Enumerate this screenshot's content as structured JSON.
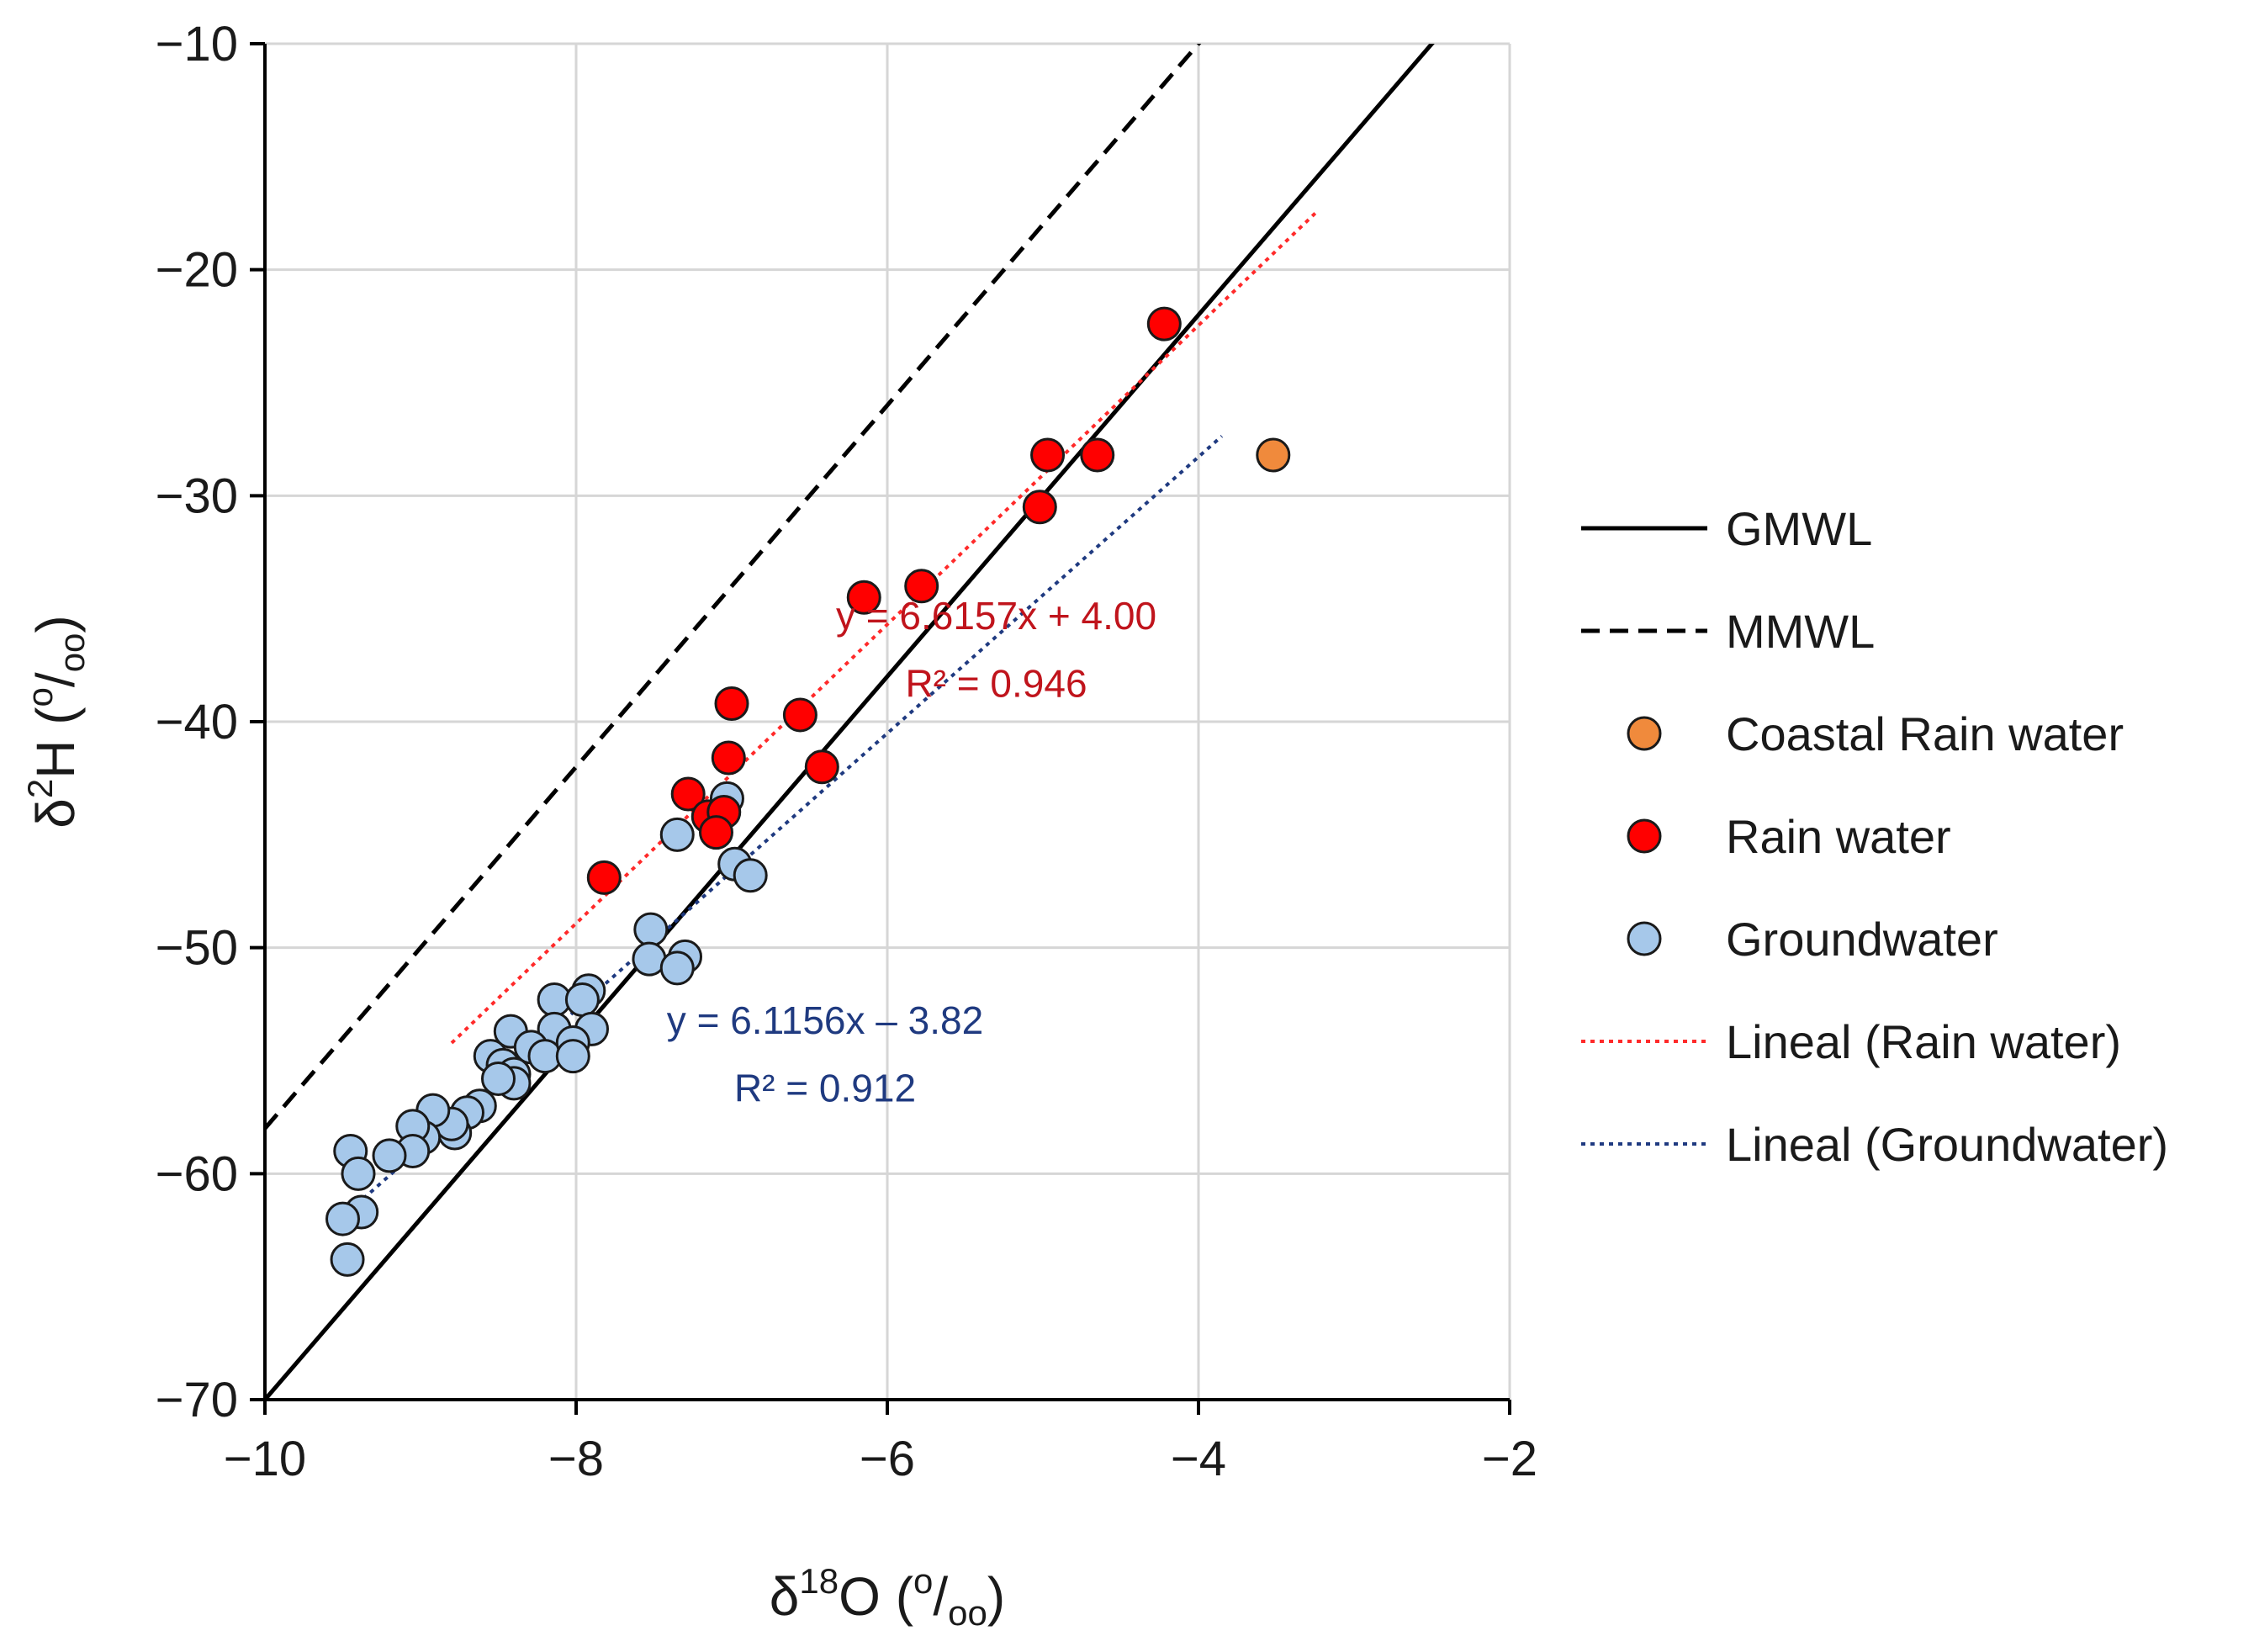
{
  "chart_data": {
    "type": "scatter",
    "xlabel": "δ18O (o/oo)",
    "ylabel": "δ2H (o/oo)",
    "xlabel_parts": {
      "base": "δ",
      "sup": "18",
      "mid": "O (",
      "unit_sup": "o",
      "slash": "/",
      "unit_sub": "oo",
      "end": ")"
    },
    "ylabel_parts": {
      "base": "δ",
      "sup": "2",
      "mid": "H (",
      "unit_sup": "o",
      "slash": "/",
      "unit_sub": "oo",
      "end": ")"
    },
    "xlim": [
      -10,
      -2
    ],
    "ylim": [
      -70,
      -10
    ],
    "xticks": [
      -10,
      -8,
      -6,
      -4,
      -2
    ],
    "yticks": [
      -10,
      -20,
      -30,
      -40,
      -50,
      -60,
      -70
    ],
    "xtick_labels": [
      "−10",
      "−8",
      "−6",
      "−4",
      "−2"
    ],
    "ytick_labels": [
      "−10",
      "−20",
      "−30",
      "−40",
      "−50",
      "−60",
      "−70"
    ],
    "grid": true,
    "legend_position": "right",
    "lines": [
      {
        "name": "GMWL",
        "slope": 8,
        "intercept": 10,
        "x_range": [
          -10,
          -2
        ],
        "color": "#000000",
        "style": "solid"
      },
      {
        "name": "MMWL",
        "slope": 8,
        "intercept": 22,
        "x_range": [
          -10,
          -2
        ],
        "color": "#000000",
        "style": "dashed"
      },
      {
        "name": "Lineal (Rain water)",
        "slope": 6.6157,
        "intercept": 4.0,
        "x_range": [
          -8.8,
          -3.25
        ],
        "color": "#ff2a2a",
        "style": "dotted"
      },
      {
        "name": "Lineal (Groundwater)",
        "slope": 6.1156,
        "intercept": -3.82,
        "x_range": [
          -9.5,
          -3.85
        ],
        "color": "#1f3a80",
        "style": "dotted"
      }
    ],
    "series": [
      {
        "name": "Coastal Rain water",
        "color": "#f08a3c",
        "points": [
          [
            -3.52,
            -28.2
          ]
        ]
      },
      {
        "name": "Rain water",
        "color": "#ff0000",
        "points": [
          [
            -4.22,
            -22.4
          ],
          [
            -4.97,
            -28.2
          ],
          [
            -4.65,
            -28.2
          ],
          [
            -5.02,
            -30.5
          ],
          [
            -6.15,
            -34.5
          ],
          [
            -5.78,
            -34.0
          ],
          [
            -7.0,
            -39.2
          ],
          [
            -6.56,
            -39.7
          ],
          [
            -6.42,
            -42.0
          ],
          [
            -7.02,
            -41.6
          ],
          [
            -7.28,
            -43.2
          ],
          [
            -7.15,
            -44.2
          ],
          [
            -7.05,
            -44.0
          ],
          [
            -7.1,
            -44.9
          ],
          [
            -7.82,
            -46.9
          ]
        ]
      },
      {
        "name": "Groundwater",
        "color": "#a6c8ea",
        "points": [
          [
            -7.03,
            -43.4
          ],
          [
            -7.35,
            -45.0
          ],
          [
            -6.98,
            -46.3
          ],
          [
            -6.88,
            -46.8
          ],
          [
            -7.52,
            -49.2
          ],
          [
            -7.53,
            -50.5
          ],
          [
            -7.3,
            -50.4
          ],
          [
            -7.35,
            -50.9
          ],
          [
            -7.92,
            -51.9
          ],
          [
            -8.14,
            -52.3
          ],
          [
            -7.96,
            -52.3
          ],
          [
            -7.9,
            -53.6
          ],
          [
            -8.14,
            -53.6
          ],
          [
            -8.42,
            -53.7
          ],
          [
            -8.29,
            -54.4
          ],
          [
            -8.55,
            -54.8
          ],
          [
            -8.2,
            -54.8
          ],
          [
            -8.02,
            -54.2
          ],
          [
            -8.02,
            -54.8
          ],
          [
            -8.47,
            -55.2
          ],
          [
            -8.4,
            -55.6
          ],
          [
            -8.4,
            -56.0
          ],
          [
            -8.5,
            -55.8
          ],
          [
            -8.62,
            -57.0
          ],
          [
            -8.7,
            -57.3
          ],
          [
            -8.78,
            -58.2
          ],
          [
            -8.8,
            -57.8
          ],
          [
            -8.92,
            -57.2
          ],
          [
            -8.98,
            -58.4
          ],
          [
            -9.05,
            -57.9
          ],
          [
            -9.05,
            -59.0
          ],
          [
            -9.2,
            -59.2
          ],
          [
            -9.45,
            -59.0
          ],
          [
            -9.4,
            -60.0
          ],
          [
            -9.38,
            -61.7
          ],
          [
            -9.5,
            -62.0
          ],
          [
            -9.47,
            -63.8
          ]
        ]
      }
    ],
    "annotations": [
      {
        "text": "y = 6.6157x + 4.00",
        "color": "#c0141c",
        "x": -5.3,
        "y": -35.9
      },
      {
        "text": "R² = 0.946",
        "color": "#c0141c",
        "x": -5.3,
        "y": -38.9
      },
      {
        "text": "y = 6.1156x – 3.82",
        "color": "#1f3a80",
        "x": -6.4,
        "y": -53.8
      },
      {
        "text": "R² = 0.912",
        "color": "#1f3a80",
        "x": -6.4,
        "y": -56.8
      }
    ],
    "legend": [
      {
        "label": "GMWL",
        "kind": "line",
        "color": "#000000",
        "style": "solid"
      },
      {
        "label": "MMWL",
        "kind": "line",
        "color": "#000000",
        "style": "dashed"
      },
      {
        "label": "Coastal Rain water",
        "kind": "marker",
        "color": "#f08a3c"
      },
      {
        "label": "Rain water",
        "kind": "marker",
        "color": "#ff0000"
      },
      {
        "label": "Groundwater",
        "kind": "marker",
        "color": "#a6c8ea"
      },
      {
        "label": "Lineal (Rain water)",
        "kind": "line",
        "color": "#ff2a2a",
        "style": "dotted"
      },
      {
        "label": "Lineal (Groundwater)",
        "kind": "line",
        "color": "#1f3a80",
        "style": "dotted"
      }
    ]
  }
}
